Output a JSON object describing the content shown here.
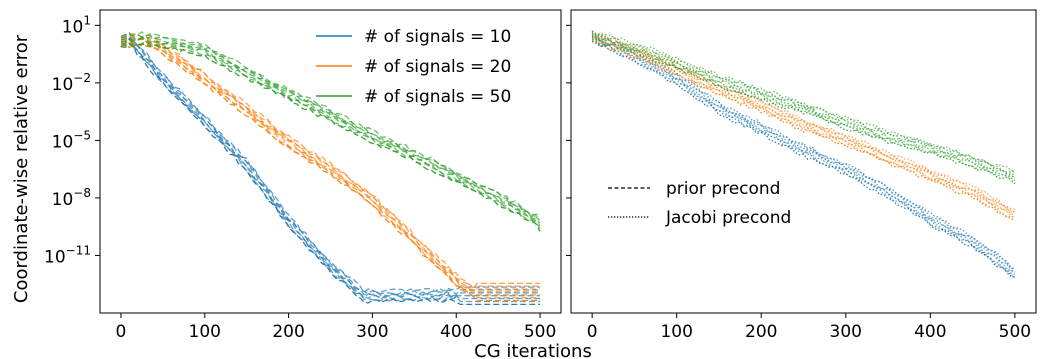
{
  "chart_data": {
    "type": "line",
    "xlabel": "CG iterations",
    "ylabel": "Coordinate-wise relative error",
    "yscale": "log",
    "xlim": [
      -25,
      525
    ],
    "ylim_log10": [
      -14,
      1.8
    ],
    "xticks": [
      "0",
      "100",
      "200",
      "300",
      "400",
      "500"
    ],
    "yticks": [
      {
        "base": "10",
        "exp": "1",
        "value": 1
      },
      {
        "base": "10",
        "exp": "-2",
        "value": -2
      },
      {
        "base": "10",
        "exp": "-5",
        "value": -5
      },
      {
        "base": "10",
        "exp": "-8",
        "value": -8
      },
      {
        "base": "10",
        "exp": "-11",
        "value": -11
      }
    ],
    "colors": {
      "10": "#1f77b4",
      "20": "#ff7f0e",
      "50": "#2ca02c"
    },
    "legend_signals": [
      {
        "label": "# of signals = 10",
        "color": "#1f77b4"
      },
      {
        "label": "# of signals = 20",
        "color": "#ff7f0e"
      },
      {
        "label": "# of signals = 50",
        "color": "#2ca02c"
      }
    ],
    "legend_precond": [
      {
        "label": "prior precond",
        "style": "dashed"
      },
      {
        "label": "Jacobi precond",
        "style": "dotted"
      }
    ],
    "panels": [
      {
        "name": "left",
        "legend": "top-right",
        "series": [
          {
            "signals": 10,
            "style": "dashed",
            "x": [
              0,
              10,
              50,
              100,
              150,
              200,
              250,
              290,
              350,
              400,
              450,
              500
            ],
            "log10_y": [
              0.2,
              0.3,
              -1.8,
              -4.0,
              -6.3,
              -9.2,
              -11.6,
              -13.1,
              -13.1,
              -13.1,
              -13.1,
              -13.1
            ]
          },
          {
            "signals": 20,
            "style": "dashed",
            "x": [
              0,
              30,
              50,
              100,
              150,
              200,
              250,
              300,
              350,
              400,
              420,
              450,
              500
            ],
            "log10_y": [
              0.2,
              0.2,
              -0.2,
              -1.8,
              -3.4,
              -5.1,
              -6.5,
              -8.1,
              -10.2,
              -12.3,
              -12.9,
              -12.9,
              -12.9
            ]
          },
          {
            "signals": 50,
            "style": "dashed",
            "x": [
              0,
              25,
              50,
              100,
              150,
              200,
              250,
              300,
              350,
              400,
              450,
              500
            ],
            "log10_y": [
              0.2,
              0.3,
              0.1,
              -0.3,
              -1.5,
              -2.6,
              -3.7,
              -4.8,
              -5.8,
              -6.9,
              -8.0,
              -9.3
            ]
          }
        ]
      },
      {
        "name": "right",
        "legend": "center-left",
        "series": [
          {
            "signals": 10,
            "style": "dotted",
            "x": [
              0,
              50,
              100,
              150,
              200,
              250,
              300,
              350,
              400,
              450,
              500
            ],
            "log10_y": [
              0.4,
              -0.6,
              -1.8,
              -3.3,
              -4.4,
              -5.5,
              -6.5,
              -7.7,
              -9.1,
              -10.3,
              -11.9
            ]
          },
          {
            "signals": 20,
            "style": "dotted",
            "x": [
              0,
              50,
              100,
              150,
              200,
              250,
              300,
              350,
              400,
              450,
              500
            ],
            "log10_y": [
              0.4,
              -0.4,
              -1.3,
              -2.4,
              -3.2,
              -4.2,
              -5.0,
              -5.9,
              -6.8,
              -7.7,
              -8.9
            ]
          },
          {
            "signals": 50,
            "style": "dotted",
            "x": [
              0,
              50,
              100,
              150,
              200,
              250,
              300,
              350,
              400,
              450,
              500
            ],
            "log10_y": [
              0.4,
              -0.2,
              -1.0,
              -1.9,
              -2.6,
              -3.3,
              -4.1,
              -4.8,
              -5.4,
              -6.1,
              -6.9
            ]
          }
        ]
      }
    ]
  }
}
